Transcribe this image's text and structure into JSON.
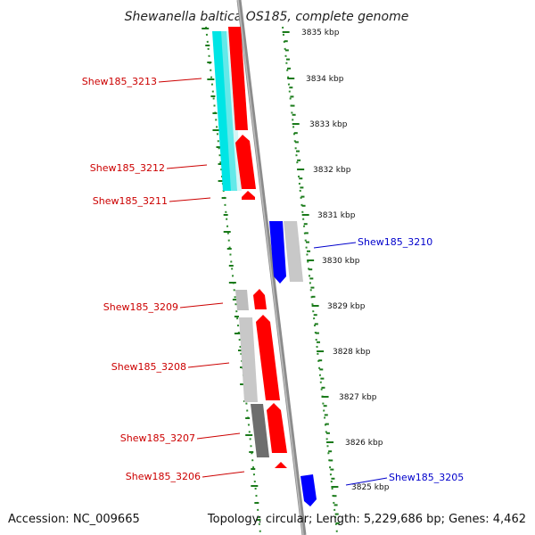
{
  "title": "Shewanella baltica OS185, complete genome",
  "accession": "Accession: NC_009665",
  "summary": "Topology: circular; Length: 5,229,686 bp; Genes: 4,462",
  "colors": {
    "forward_gene": "#ff0000",
    "reverse_gene": "#0000ff",
    "forward_label": "#cc0000",
    "reverse_label": "#0000cc",
    "backbone": "#8c8c8c",
    "tick_green": "#1a7a1a",
    "overlay_cyan": "#00e5e5",
    "overlay_gray": "#c8c8c8",
    "overlay_dark": "#6e6e6e"
  },
  "ticks": [
    {
      "label": "3835 kbp"
    },
    {
      "label": "3834 kbp"
    },
    {
      "label": "3833 kbp"
    },
    {
      "label": "3832 kbp"
    },
    {
      "label": "3831 kbp"
    },
    {
      "label": "3830 kbp"
    },
    {
      "label": "3829 kbp"
    },
    {
      "label": "3828 kbp"
    },
    {
      "label": "3827 kbp"
    },
    {
      "label": "3826 kbp"
    },
    {
      "label": "3825 kbp"
    }
  ],
  "genes": [
    {
      "id": "Shew185_3213",
      "strand": "forward"
    },
    {
      "id": "Shew185_3212",
      "strand": "forward"
    },
    {
      "id": "Shew185_3211",
      "strand": "forward"
    },
    {
      "id": "Shew185_3210",
      "strand": "reverse"
    },
    {
      "id": "Shew185_3209",
      "strand": "forward"
    },
    {
      "id": "Shew185_3208",
      "strand": "forward"
    },
    {
      "id": "Shew185_3207",
      "strand": "forward"
    },
    {
      "id": "Shew185_3206",
      "strand": "forward"
    },
    {
      "id": "Shew185_3205",
      "strand": "reverse"
    }
  ]
}
